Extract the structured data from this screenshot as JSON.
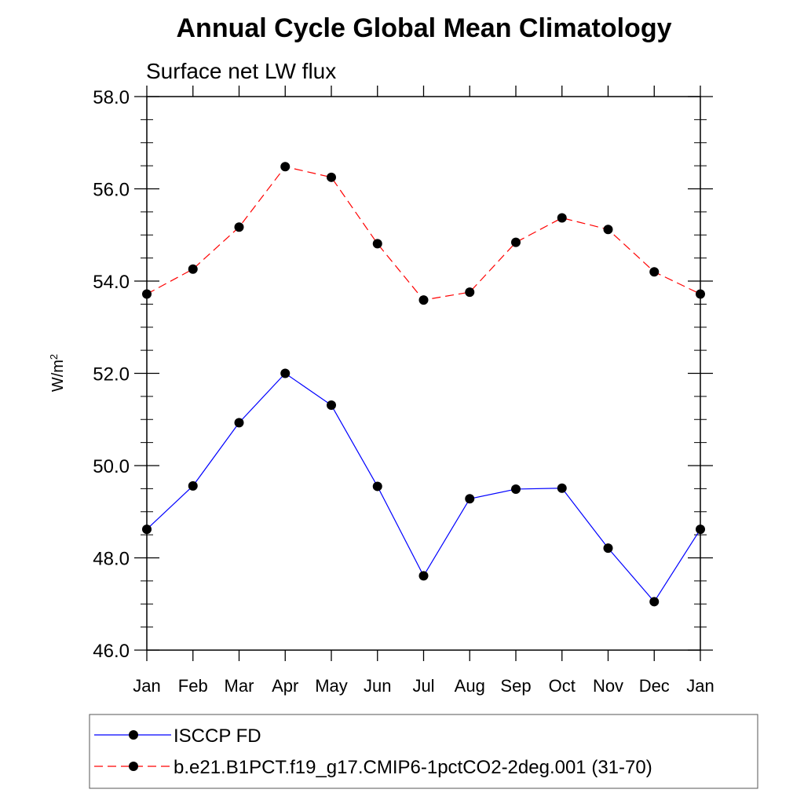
{
  "chart_data": {
    "type": "line",
    "title": "Annual Cycle Global Mean Climatology",
    "subtitle": "Surface net LW flux",
    "ylabel": "W/m",
    "ylabel_superscript": "2",
    "xlabel": "",
    "ylim": [
      46.0,
      58.0
    ],
    "yticks": [
      "46.0",
      "48.0",
      "50.0",
      "52.0",
      "54.0",
      "56.0",
      "58.0"
    ],
    "categories": [
      "Jan",
      "Feb",
      "Mar",
      "Apr",
      "May",
      "Jun",
      "Jul",
      "Aug",
      "Sep",
      "Oct",
      "Nov",
      "Dec",
      "Jan"
    ],
    "grid": false,
    "legend_position": "bottom",
    "series": [
      {
        "name": "ISCCP FD",
        "color": "#0000ff",
        "dash": "solid",
        "values": [
          48.62,
          49.56,
          50.93,
          52.0,
          51.31,
          49.55,
          47.61,
          49.28,
          49.49,
          49.51,
          48.21,
          47.05,
          48.62
        ]
      },
      {
        "name": "b.e21.B1PCT.f19_g17.CMIP6-1pctCO2-2deg.001 (31-70)",
        "color": "#ff0000",
        "dash": "dashed",
        "values": [
          53.72,
          54.26,
          55.17,
          56.48,
          56.25,
          54.81,
          53.59,
          53.76,
          54.84,
          55.37,
          55.12,
          54.2,
          53.72
        ]
      }
    ]
  }
}
